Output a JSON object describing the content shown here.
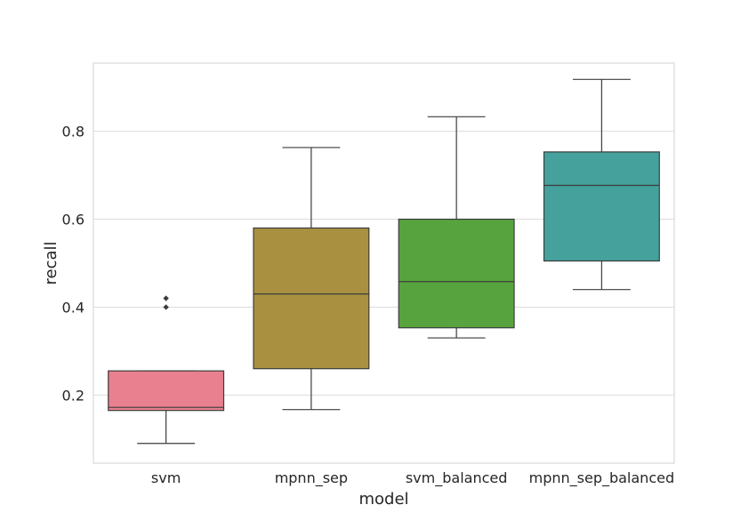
{
  "chart_data": {
    "type": "box",
    "xlabel": "model",
    "ylabel": "recall",
    "ylim": [
      0.045,
      0.955
    ],
    "yticks": [
      0.2,
      0.4,
      0.6,
      0.8
    ],
    "ytick_labels": [
      "0.2",
      "0.4",
      "0.6",
      "0.8"
    ],
    "grid": true,
    "categories": [
      "svm",
      "mpnn_sep",
      "svm_balanced",
      "mpnn_sep_balanced"
    ],
    "boxes": [
      {
        "name": "svm",
        "whisker_low": 0.09,
        "q1": 0.165,
        "median": 0.172,
        "q3": 0.255,
        "whisker_high": 0.255,
        "outliers": [
          0.4,
          0.42
        ],
        "color": "#e8808f"
      },
      {
        "name": "mpnn_sep",
        "whisker_low": 0.167,
        "q1": 0.26,
        "median": 0.43,
        "q3": 0.58,
        "whisker_high": 0.763,
        "outliers": [],
        "color": "#a89040"
      },
      {
        "name": "svm_balanced",
        "whisker_low": 0.33,
        "q1": 0.353,
        "median": 0.458,
        "q3": 0.6,
        "whisker_high": 0.833,
        "outliers": [],
        "color": "#57a43f"
      },
      {
        "name": "mpnn_sep_balanced",
        "whisker_low": 0.44,
        "q1": 0.505,
        "median": 0.677,
        "q3": 0.753,
        "whisker_high": 0.918,
        "outliers": [],
        "color": "#44a19b"
      }
    ]
  }
}
